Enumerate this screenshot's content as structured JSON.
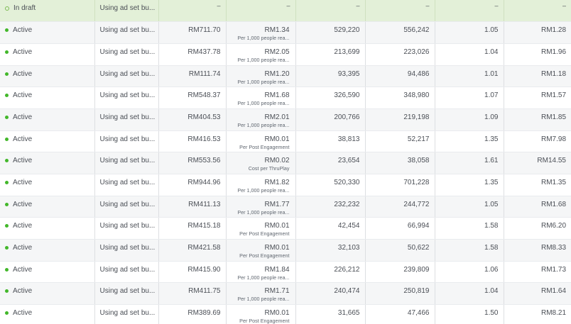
{
  "colors": {
    "active_dot": "#42b72a",
    "draft_row": "#e3f0d8"
  },
  "draft_row": {
    "status": "In draft",
    "budget": "Using ad set bu...",
    "placeholders": [
      "–",
      "–",
      "–",
      "–",
      "–",
      "–"
    ]
  },
  "rows": [
    {
      "status": "Active",
      "budget": "Using ad set bu...",
      "spent": "RM711.70",
      "result": "RM1.34",
      "result_sub": "Per 1,000 people rea...",
      "reach": "529,220",
      "impressions": "556,242",
      "frequency": "1.05",
      "cpm": "RM1.28"
    },
    {
      "status": "Active",
      "budget": "Using ad set bu...",
      "spent": "RM437.78",
      "result": "RM2.05",
      "result_sub": "Per 1,000 people rea...",
      "reach": "213,699",
      "impressions": "223,026",
      "frequency": "1.04",
      "cpm": "RM1.96"
    },
    {
      "status": "Active",
      "budget": "Using ad set bu...",
      "spent": "RM111.74",
      "result": "RM1.20",
      "result_sub": "Per 1,000 people rea...",
      "reach": "93,395",
      "impressions": "94,486",
      "frequency": "1.01",
      "cpm": "RM1.18"
    },
    {
      "status": "Active",
      "budget": "Using ad set bu...",
      "spent": "RM548.37",
      "result": "RM1.68",
      "result_sub": "Per 1,000 people rea...",
      "reach": "326,590",
      "impressions": "348,980",
      "frequency": "1.07",
      "cpm": "RM1.57"
    },
    {
      "status": "Active",
      "budget": "Using ad set bu...",
      "spent": "RM404.53",
      "result": "RM2.01",
      "result_sub": "Per 1,000 people rea...",
      "reach": "200,766",
      "impressions": "219,198",
      "frequency": "1.09",
      "cpm": "RM1.85"
    },
    {
      "status": "Active",
      "budget": "Using ad set bu...",
      "spent": "RM416.53",
      "result": "RM0.01",
      "result_sub": "Per Post Engagement",
      "reach": "38,813",
      "impressions": "52,217",
      "frequency": "1.35",
      "cpm": "RM7.98"
    },
    {
      "status": "Active",
      "budget": "Using ad set bu...",
      "spent": "RM553.56",
      "result": "RM0.02",
      "result_sub": "Cost per ThruPlay",
      "reach": "23,654",
      "impressions": "38,058",
      "frequency": "1.61",
      "cpm": "RM14.55"
    },
    {
      "status": "Active",
      "budget": "Using ad set bu...",
      "spent": "RM944.96",
      "result": "RM1.82",
      "result_sub": "Per 1,000 people rea...",
      "reach": "520,330",
      "impressions": "701,228",
      "frequency": "1.35",
      "cpm": "RM1.35"
    },
    {
      "status": "Active",
      "budget": "Using ad set bu...",
      "spent": "RM411.13",
      "result": "RM1.77",
      "result_sub": "Per 1,000 people rea...",
      "reach": "232,232",
      "impressions": "244,772",
      "frequency": "1.05",
      "cpm": "RM1.68"
    },
    {
      "status": "Active",
      "budget": "Using ad set bu...",
      "spent": "RM415.18",
      "result": "RM0.01",
      "result_sub": "Per Post Engagement",
      "reach": "42,454",
      "impressions": "66,994",
      "frequency": "1.58",
      "cpm": "RM6.20"
    },
    {
      "status": "Active",
      "budget": "Using ad set bu...",
      "spent": "RM421.58",
      "result": "RM0.01",
      "result_sub": "Per Post Engagement",
      "reach": "32,103",
      "impressions": "50,622",
      "frequency": "1.58",
      "cpm": "RM8.33"
    },
    {
      "status": "Active",
      "budget": "Using ad set bu...",
      "spent": "RM415.90",
      "result": "RM1.84",
      "result_sub": "Per 1,000 people rea...",
      "reach": "226,212",
      "impressions": "239,809",
      "frequency": "1.06",
      "cpm": "RM1.73"
    },
    {
      "status": "Active",
      "budget": "Using ad set bu...",
      "spent": "RM411.75",
      "result": "RM1.71",
      "result_sub": "Per 1,000 people rea...",
      "reach": "240,474",
      "impressions": "250,819",
      "frequency": "1.04",
      "cpm": "RM1.64"
    },
    {
      "status": "Active",
      "budget": "Using ad set bu...",
      "spent": "RM389.69",
      "result": "RM0.01",
      "result_sub": "Per Post Engagement",
      "reach": "31,665",
      "impressions": "47,466",
      "frequency": "1.50",
      "cpm": "RM8.21"
    }
  ]
}
